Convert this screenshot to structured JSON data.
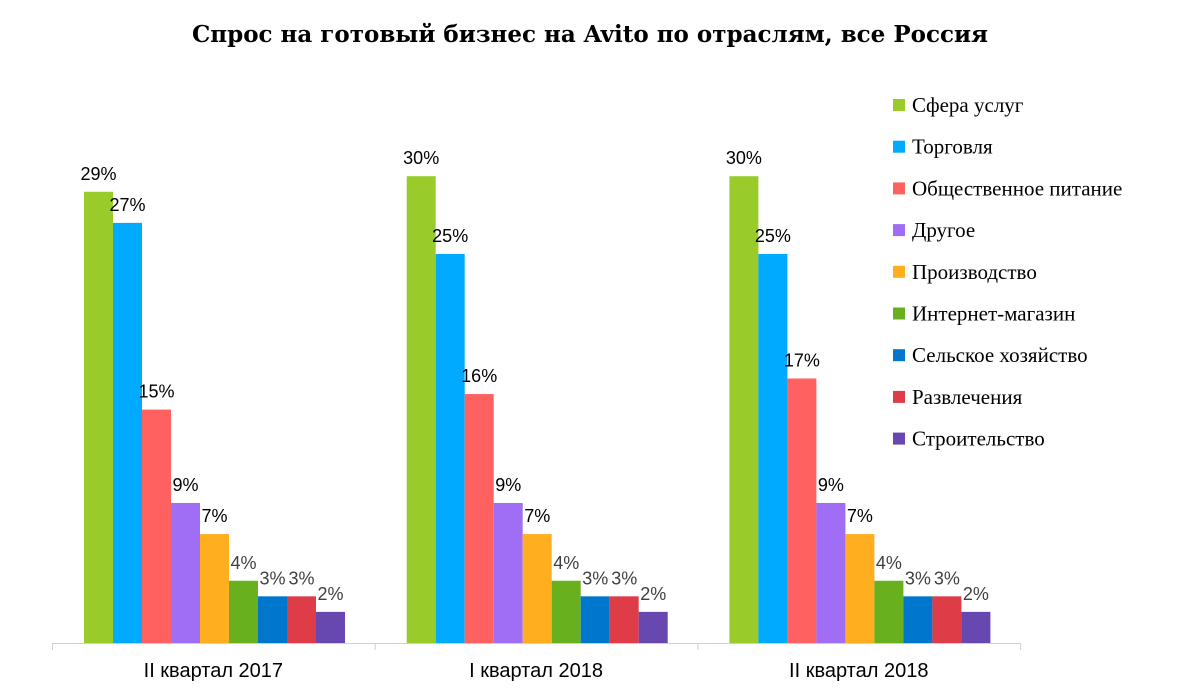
{
  "chart_data": {
    "type": "bar",
    "title": "Спрос на готовый бизнес на Avito по отраслям, все Россия",
    "xlabel": "",
    "ylabel": "",
    "ylim": [
      0,
      31
    ],
    "grid": false,
    "legend_position": "right",
    "categories": [
      "II квартал 2017",
      "I квартал 2018",
      "II квартал 2018"
    ],
    "series": [
      {
        "name": "Сфера услуг",
        "color": "#99CC2B",
        "values": [
          29,
          30,
          30
        ],
        "labels": [
          "29%",
          "30%",
          "30%"
        ]
      },
      {
        "name": "Торговля",
        "color": "#00AAFF",
        "values": [
          27,
          25,
          25
        ],
        "labels": [
          "27%",
          "25%",
          "25%"
        ]
      },
      {
        "name": "Общественное питание",
        "color": "#FF6161",
        "values": [
          15,
          16,
          17
        ],
        "labels": [
          "15%",
          "16%",
          "17%"
        ]
      },
      {
        "name": "Другое",
        "color": "#A06EF5",
        "values": [
          9,
          9,
          9
        ],
        "labels": [
          "9%",
          "9%",
          "9%"
        ]
      },
      {
        "name": "Производство",
        "color": "#FFAE20",
        "values": [
          7,
          7,
          7
        ],
        "labels": [
          "7%",
          "7%",
          "7%"
        ]
      },
      {
        "name": "Интернет-магазин",
        "color": "#68B01E",
        "values": [
          4,
          4,
          4
        ],
        "labels": [
          "4%",
          "4%",
          "4%"
        ]
      },
      {
        "name": "Сельское хозяйство",
        "color": "#0077CC",
        "values": [
          3,
          3,
          3
        ],
        "labels": [
          "3%",
          "3%",
          "3%"
        ]
      },
      {
        "name": "Развлечения",
        "color": "#DE3D48",
        "values": [
          3,
          3,
          3
        ],
        "labels": [
          "3%",
          "3%",
          "3%"
        ]
      },
      {
        "name": "Строительство",
        "color": "#6748B0",
        "values": [
          2,
          2,
          2
        ],
        "labels": [
          "2%",
          "2%",
          "2%"
        ]
      }
    ]
  }
}
